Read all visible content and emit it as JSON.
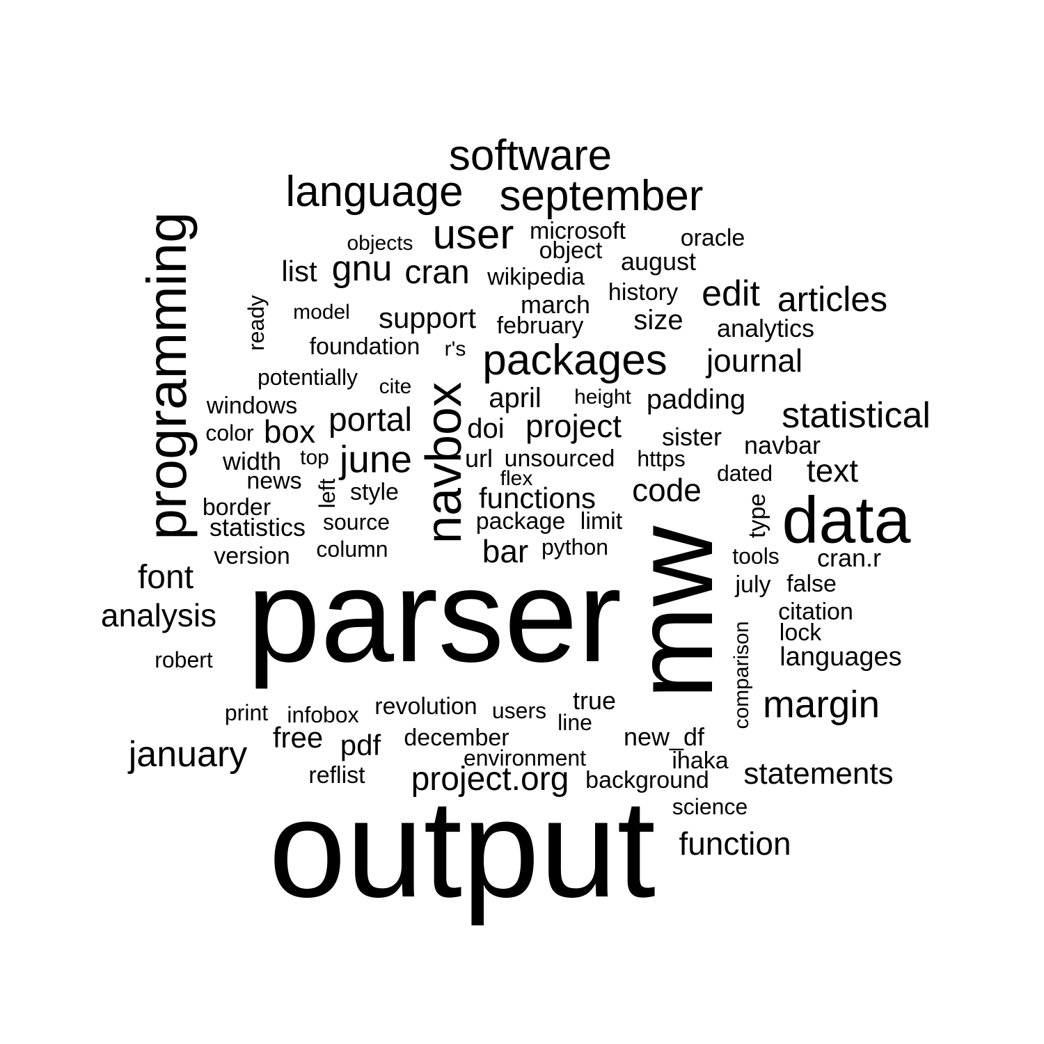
{
  "colors": {
    "background": "#ffffff",
    "text": "#000000"
  },
  "words": [
    {
      "text": "output",
      "size": 200,
      "vertical": false
    },
    {
      "text": "parser",
      "size": 190,
      "vertical": false
    },
    {
      "text": "mw",
      "size": 160,
      "vertical": true
    },
    {
      "text": "data",
      "size": 95,
      "vertical": false
    },
    {
      "text": "programming",
      "size": 80,
      "vertical": true
    },
    {
      "text": "navbox",
      "size": 72,
      "vertical": true
    },
    {
      "text": "packages",
      "size": 62,
      "vertical": false
    },
    {
      "text": "software",
      "size": 62,
      "vertical": false
    },
    {
      "text": "language",
      "size": 62,
      "vertical": false
    },
    {
      "text": "september",
      "size": 62,
      "vertical": false
    },
    {
      "text": "user",
      "size": 60,
      "vertical": false
    },
    {
      "text": "june",
      "size": 55,
      "vertical": false
    },
    {
      "text": "margin",
      "size": 55,
      "vertical": false
    },
    {
      "text": "gnu",
      "size": 52,
      "vertical": false
    },
    {
      "text": "statistical",
      "size": 52,
      "vertical": false
    },
    {
      "text": "articles",
      "size": 50,
      "vertical": false
    },
    {
      "text": "edit",
      "size": 52,
      "vertical": false
    },
    {
      "text": "january",
      "size": 52,
      "vertical": false
    },
    {
      "text": "project.org",
      "size": 48,
      "vertical": false
    },
    {
      "text": "portal",
      "size": 48,
      "vertical": false
    },
    {
      "text": "cran",
      "size": 48,
      "vertical": false
    },
    {
      "text": "font",
      "size": 48,
      "vertical": false
    },
    {
      "text": "project",
      "size": 46,
      "vertical": false
    },
    {
      "text": "bar",
      "size": 46,
      "vertical": false
    },
    {
      "text": "code",
      "size": 46,
      "vertical": false
    },
    {
      "text": "journal",
      "size": 46,
      "vertical": false
    },
    {
      "text": "box",
      "size": 46,
      "vertical": false
    },
    {
      "text": "text",
      "size": 46,
      "vertical": false
    },
    {
      "text": "analysis",
      "size": 46,
      "vertical": false
    },
    {
      "text": "function",
      "size": 46,
      "vertical": false
    },
    {
      "text": "statements",
      "size": 44,
      "vertical": false
    },
    {
      "text": "support",
      "size": 42,
      "vertical": false
    },
    {
      "text": "functions",
      "size": 42,
      "vertical": false
    },
    {
      "text": "padding",
      "size": 40,
      "vertical": false
    },
    {
      "text": "april",
      "size": 40,
      "vertical": false
    },
    {
      "text": "languages",
      "size": 38,
      "vertical": false
    },
    {
      "text": "list",
      "size": 42,
      "vertical": false
    },
    {
      "text": "free",
      "size": 42,
      "vertical": false
    },
    {
      "text": "pdf",
      "size": 42,
      "vertical": false
    },
    {
      "text": "size",
      "size": 40,
      "vertical": false
    },
    {
      "text": "doi",
      "size": 40,
      "vertical": false
    },
    {
      "text": "navbar",
      "size": 36,
      "vertical": false
    },
    {
      "text": "sister",
      "size": 36,
      "vertical": false
    },
    {
      "text": "august",
      "size": 36,
      "vertical": false
    },
    {
      "text": "march",
      "size": 36,
      "vertical": false
    },
    {
      "text": "url",
      "size": 36,
      "vertical": false
    },
    {
      "text": "cran.r",
      "size": 36,
      "vertical": false
    },
    {
      "text": "width",
      "size": 36,
      "vertical": false
    },
    {
      "text": "statistics",
      "size": 36,
      "vertical": false
    },
    {
      "text": "analytics",
      "size": 36,
      "vertical": false
    },
    {
      "text": "microsoft",
      "size": 34,
      "vertical": false
    },
    {
      "text": "object",
      "size": 34,
      "vertical": false
    },
    {
      "text": "wikipedia",
      "size": 34,
      "vertical": false
    },
    {
      "text": "history",
      "size": 34,
      "vertical": false
    },
    {
      "text": "foundation",
      "size": 34,
      "vertical": false
    },
    {
      "text": "windows",
      "size": 34,
      "vertical": false
    },
    {
      "text": "news",
      "size": 34,
      "vertical": false
    },
    {
      "text": "version",
      "size": 34,
      "vertical": false
    },
    {
      "text": "oracle",
      "size": 34,
      "vertical": false
    },
    {
      "text": "february",
      "size": 34,
      "vertical": false
    },
    {
      "text": "style",
      "size": 34,
      "vertical": false
    },
    {
      "text": "source",
      "size": 32,
      "vertical": false
    },
    {
      "text": "column",
      "size": 32,
      "vertical": false
    },
    {
      "text": "https",
      "size": 32,
      "vertical": false
    },
    {
      "text": "python",
      "size": 32,
      "vertical": false
    },
    {
      "text": "limit",
      "size": 34,
      "vertical": false
    },
    {
      "text": "package",
      "size": 34,
      "vertical": false
    },
    {
      "text": "unsourced",
      "size": 34,
      "vertical": false
    },
    {
      "text": "dated",
      "size": 32,
      "vertical": false
    },
    {
      "text": "tools",
      "size": 32,
      "vertical": false
    },
    {
      "text": "july",
      "size": 34,
      "vertical": false
    },
    {
      "text": "false",
      "size": 34,
      "vertical": false
    },
    {
      "text": "citation",
      "size": 34,
      "vertical": false
    },
    {
      "text": "lock",
      "size": 34,
      "vertical": false
    },
    {
      "text": "true",
      "size": 36,
      "vertical": false
    },
    {
      "text": "new_df",
      "size": 36,
      "vertical": false
    },
    {
      "text": "ihaka",
      "size": 34,
      "vertical": false
    },
    {
      "text": "background",
      "size": 34,
      "vertical": false
    },
    {
      "text": "science",
      "size": 32,
      "vertical": false
    },
    {
      "text": "environment",
      "size": 32,
      "vertical": false
    },
    {
      "text": "december",
      "size": 34,
      "vertical": false
    },
    {
      "text": "revolution",
      "size": 34,
      "vertical": false
    },
    {
      "text": "users",
      "size": 32,
      "vertical": false
    },
    {
      "text": "line",
      "size": 32,
      "vertical": false
    },
    {
      "text": "infobox",
      "size": 32,
      "vertical": false
    },
    {
      "text": "print",
      "size": 32,
      "vertical": false
    },
    {
      "text": "reflist",
      "size": 34,
      "vertical": false
    },
    {
      "text": "robert",
      "size": 32,
      "vertical": false
    },
    {
      "text": "border",
      "size": 34,
      "vertical": false
    },
    {
      "text": "color",
      "size": 32,
      "vertical": false
    },
    {
      "text": "top",
      "size": 30,
      "vertical": false
    },
    {
      "text": "left",
      "size": 32,
      "vertical": true
    },
    {
      "text": "flex",
      "size": 30,
      "vertical": false
    },
    {
      "text": "height",
      "size": 30,
      "vertical": false
    },
    {
      "text": "cite",
      "size": 30,
      "vertical": false
    },
    {
      "text": "r's",
      "size": 30,
      "vertical": false
    },
    {
      "text": "potentially",
      "size": 32,
      "vertical": false
    },
    {
      "text": "model",
      "size": 30,
      "vertical": false
    },
    {
      "text": "objects",
      "size": 30,
      "vertical": false
    },
    {
      "text": "ready",
      "size": 32,
      "vertical": true
    },
    {
      "text": "type",
      "size": 34,
      "vertical": true
    },
    {
      "text": "comparison",
      "size": 30,
      "vertical": true
    }
  ]
}
